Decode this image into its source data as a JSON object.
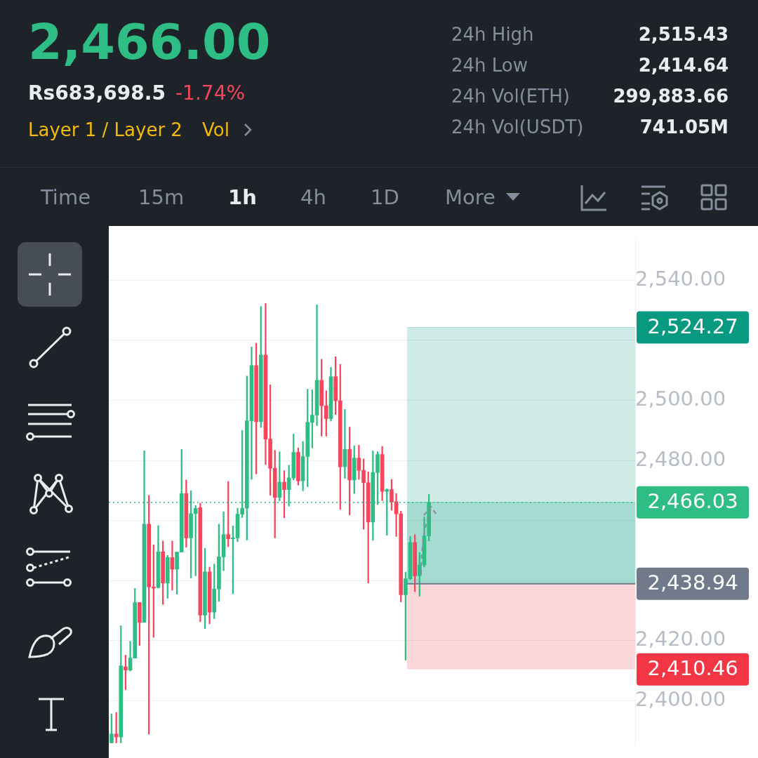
{
  "chart_data": {
    "type": "candlestick",
    "title": "2,466.00",
    "annotations": [
      "Rs683,698.5",
      "-1.74%",
      "Layer 1 / Layer 2",
      "Vol",
      "24h High",
      "2,515.43",
      "24h Low",
      "2,414.64",
      "24h Vol(ETH)",
      "299,883.66",
      "24h Vol(USDT)",
      "741.05M",
      "Time",
      "15m",
      "1h",
      "4h",
      "1D",
      "More"
    ],
    "categories": [
      null,
      null,
      null,
      null,
      null,
      null,
      null,
      null,
      null,
      null,
      null,
      null,
      null,
      null,
      null,
      null,
      null,
      null,
      null,
      null,
      null,
      null,
      null,
      null,
      null,
      null,
      null,
      null,
      null,
      null,
      null,
      null,
      null,
      null,
      null,
      null,
      null,
      null,
      null,
      null,
      null,
      null,
      null,
      null,
      null,
      null,
      null,
      null,
      null,
      null,
      null,
      null,
      null,
      null,
      null,
      null,
      null,
      null,
      null,
      null,
      null,
      null,
      null,
      null,
      null,
      null,
      null,
      null,
      null,
      null,
      null,
      null,
      null,
      null,
      null,
      null,
      null,
      null,
      null,
      null,
      null,
      null,
      null,
      null,
      null,
      null,
      null,
      null,
      null,
      null,
      null,
      null,
      null,
      null,
      null,
      null,
      null,
      null,
      null,
      null,
      null,
      null,
      null,
      null,
      null,
      null,
      null,
      null,
      null,
      null,
      null,
      null,
      null
    ],
    "ohlc": [
      [
        2386,
        2395.6,
        2386,
        2388.9
      ],
      [
        2388.9,
        2396.1,
        2386,
        2387.9
      ],
      [
        2387.9,
        2425,
        2386,
        2411.6
      ],
      [
        2411.3,
        2415.2,
        2403.7,
        2410.2
      ],
      [
        2410.2,
        2419.8,
        2409.9,
        2414.2
      ],
      [
        2414.2,
        2437.4,
        2414.2,
        2432.7
      ],
      [
        2432.7,
        2432.7,
        2418.4,
        2426.1
      ],
      [
        2426.1,
        2483.2,
        2426.1,
        2458.8
      ],
      [
        2458.8,
        2468.4,
        2388.9,
        2437.9
      ],
      [
        2437.9,
        2451.9,
        2421.1,
        2437.5
      ],
      [
        2437.7,
        2458.3,
        2437.5,
        2449.6
      ],
      [
        2449.6,
        2453.2,
        2432.1,
        2439.2
      ],
      [
        2439.2,
        2448.4,
        2434.1,
        2447.7
      ],
      [
        2447.7,
        2453.2,
        2436.8,
        2443.8
      ],
      [
        2443.8,
        2449.5,
        2435.5,
        2449.5
      ],
      [
        2449.5,
        2483.7,
        2449.5,
        2469
      ],
      [
        2469,
        2473.5,
        2451.1,
        2454.2
      ],
      [
        2454.2,
        2469.9,
        2440.9,
        2462.3
      ],
      [
        2462.3,
        2465,
        2441.6,
        2464
      ],
      [
        2464.3,
        2465.8,
        2426.3,
        2428.5
      ],
      [
        2428.5,
        2450.8,
        2424,
        2442.9
      ],
      [
        2442.9,
        2444.5,
        2425.6,
        2429.5
      ],
      [
        2429.5,
        2445.5,
        2427.3,
        2437.2
      ],
      [
        2437.2,
        2458.8,
        2433.1,
        2447.9
      ],
      [
        2447.9,
        2462.9,
        2443.3,
        2455.3
      ],
      [
        2455.3,
        2473,
        2451.3,
        2453.9
      ],
      [
        2453.9,
        2458.2,
        2435.6,
        2454.2
      ],
      [
        2454.2,
        2464.1,
        2453,
        2462.1
      ],
      [
        2462.1,
        2490,
        2461,
        2464.1
      ],
      [
        2464.1,
        2508.1,
        2453.5,
        2493.2
      ],
      [
        2493.2,
        2517.8,
        2473.7,
        2511.6
      ],
      [
        2511.6,
        2519,
        2475.5,
        2492.9
      ],
      [
        2492.9,
        2531.3,
        2491,
        2515.1
      ],
      [
        2515.1,
        2532.3,
        2478.6,
        2487.1
      ],
      [
        2487.1,
        2505.2,
        2468.4,
        2477.4
      ],
      [
        2477.4,
        2483.4,
        2454.2,
        2467.7
      ],
      [
        2467.7,
        2482.9,
        2466.5,
        2472.8
      ],
      [
        2472.8,
        2476.6,
        2460.9,
        2470.3
      ],
      [
        2470.3,
        2478.4,
        2464.8,
        2474.2
      ],
      [
        2474.2,
        2488.8,
        2473.5,
        2482.7
      ],
      [
        2482.7,
        2484.2,
        2471.8,
        2473.2
      ],
      [
        2473.2,
        2486.3,
        2469.9,
        2481.3
      ],
      [
        2481.3,
        2503.7,
        2471.3,
        2492.7
      ],
      [
        2492.7,
        2503.5,
        2484.2,
        2495.1
      ],
      [
        2495.1,
        2531.8,
        2491.6,
        2506.7
      ],
      [
        2506.7,
        2513.7,
        2488.1,
        2498.2
      ],
      [
        2498.2,
        2503.2,
        2488.1,
        2493.9
      ],
      [
        2493.9,
        2511,
        2493.1,
        2507.9
      ],
      [
        2507.9,
        2514.5,
        2495.3,
        2499.9
      ],
      [
        2499.9,
        2512,
        2463.7,
        2477.9
      ],
      [
        2477.9,
        2497,
        2474,
        2483.7
      ],
      [
        2483.7,
        2491.1,
        2461.9,
        2473.5
      ],
      [
        2473.5,
        2484.9,
        2469,
        2480.8
      ],
      [
        2480.8,
        2485.1,
        2473.7,
        2476.7
      ],
      [
        2476.7,
        2480.5,
        2457.1,
        2472.6
      ],
      [
        2472.6,
        2476.2,
        2439.2,
        2459.5
      ],
      [
        2459.5,
        2483.2,
        2453.4,
        2476
      ],
      [
        2476,
        2482.9,
        2465.3,
        2482
      ],
      [
        2482,
        2484.7,
        2466.6,
        2469.7
      ],
      [
        2469.7,
        2470.6,
        2455.1,
        2470.3
      ],
      [
        2470.3,
        2473.7,
        2463.4,
        2466.1
      ],
      [
        2466.3,
        2469,
        2454.7,
        2462.2
      ],
      [
        2462.2,
        2463.1,
        2432.9,
        2435.3
      ],
      [
        2435.3,
        2442.8,
        2413.5,
        2440.6
      ],
      [
        2440.6,
        2454.7,
        2440.3,
        2452.7
      ],
      [
        2452.7,
        2455.3,
        2436.3,
        2441.6
      ],
      [
        2441.6,
        2449.3,
        2434.8,
        2445.2
      ],
      [
        2445.2,
        2461.2,
        2444.5,
        2454.9
      ],
      [
        2454.9,
        2468.7,
        2453.2,
        2466.03
      ],
      null,
      null,
      null,
      null,
      null,
      null,
      null,
      null,
      null,
      null,
      null,
      null,
      null,
      null,
      null,
      null,
      null,
      null,
      null,
      null,
      null,
      null,
      null,
      null,
      null,
      null,
      null,
      null,
      null,
      null,
      null,
      null,
      null,
      null,
      null,
      null,
      null,
      null,
      null,
      null,
      null,
      null,
      null,
      null
    ],
    "colors": [
      "#2ebd85",
      "#f6465d",
      "#2ebd85",
      "#f6465d",
      "#2ebd85",
      "#2ebd85",
      "#f6465d",
      "#2ebd85",
      "#f6465d",
      "#f6465d",
      "#2ebd85",
      "#f6465d",
      "#2ebd85",
      "#f6465d",
      "#2ebd85",
      "#2ebd85",
      "#f6465d",
      "#2ebd85",
      "#2ebd85",
      "#f6465d",
      "#2ebd85",
      "#f6465d",
      "#2ebd85",
      "#2ebd85",
      "#2ebd85",
      "#f6465d",
      "#2ebd85",
      "#2ebd85",
      "#2ebd85",
      "#2ebd85",
      "#2ebd85",
      "#f6465d",
      "#2ebd85",
      "#f6465d",
      "#f6465d",
      "#f6465d",
      "#2ebd85",
      "#f6465d",
      "#2ebd85",
      "#2ebd85",
      "#f6465d",
      "#2ebd85",
      "#2ebd85",
      "#2ebd85",
      "#2ebd85",
      "#f6465d",
      "#f6465d",
      "#2ebd85",
      "#f6465d",
      "#f6465d",
      "#2ebd85",
      "#f6465d",
      "#2ebd85",
      "#f6465d",
      "#f6465d",
      "#f6465d",
      "#2ebd85",
      "#2ebd85",
      "#f6465d",
      "#2ebd85",
      "#f6465d",
      "#f6465d",
      "#f6465d",
      "#2ebd85",
      "#2ebd85",
      "#f6465d",
      "#2ebd85",
      "#2ebd85",
      "#2ebd85",
      null,
      null,
      null,
      null,
      null,
      null,
      null,
      null,
      null,
      null,
      null,
      null,
      null,
      null,
      null,
      null,
      null,
      null,
      null,
      null,
      null,
      null,
      null,
      null,
      null,
      null,
      null,
      null,
      null,
      null,
      null,
      null,
      null,
      null,
      null,
      null,
      null,
      null,
      null,
      null,
      null,
      null,
      null,
      null
    ],
    "ylim": [
      2385,
      2554
    ],
    "yticks": [
      {
        "value": 2400,
        "label": "2,400.00"
      },
      {
        "value": 2420,
        "label": "2,420.00"
      },
      {
        "value": 2440,
        "label": null
      },
      {
        "value": 2460,
        "label": null
      },
      {
        "value": 2480,
        "label": "2,480.00"
      },
      {
        "value": 2500,
        "label": "2,500.00"
      },
      {
        "value": 2520,
        "label": null
      },
      {
        "value": 2540,
        "label": "2,540.00"
      }
    ],
    "tick_labels": "y",
    "grid": "y",
    "ref_lines": [
      {
        "axis": "y",
        "value": 2466.03,
        "label": "2,466.03",
        "color": "#2ebd85",
        "line_style": "dotted"
      },
      {
        "axis": "y",
        "value": 2438.94,
        "label": "2,438.94",
        "color": "#707a8a",
        "line_style": "solid"
      }
    ],
    "bands": [
      {
        "axis": "y",
        "from": 2438.94,
        "to": 2524.27,
        "label": "2,524.27",
        "color": "#089981"
      },
      {
        "axis": "y",
        "from": 2410.46,
        "to": 2438.94,
        "label": "2,410.46",
        "color": "#f23645"
      },
      {
        "axis": "y",
        "from": 2438.94,
        "to": 2466.03,
        "color": "#089981"
      }
    ]
  }
}
